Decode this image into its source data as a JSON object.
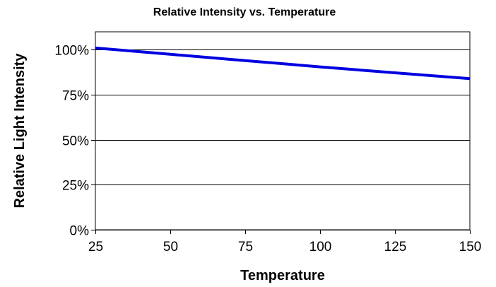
{
  "chart_data": {
    "type": "line",
    "title": "Relative Intensity vs. Temperature",
    "xlabel": "Temperature",
    "ylabel": "Relative Light Intensity",
    "xlim": [
      25,
      150
    ],
    "ylim": [
      0,
      1.1
    ],
    "x_ticks": [
      25,
      50,
      75,
      100,
      125,
      150
    ],
    "x_tick_labels": [
      "25",
      "50",
      "75",
      "100",
      "125",
      "150"
    ],
    "y_ticks": [
      0,
      0.25,
      0.5,
      0.75,
      1.0
    ],
    "y_tick_labels": [
      "0%",
      "25%",
      "50%",
      "75%",
      "100%"
    ],
    "grid": "horizontal",
    "legend": "none",
    "series": [
      {
        "color": "#0000e0",
        "x": [
          25,
          50,
          75,
          100,
          125,
          150
        ],
        "y": [
          1.01,
          0.975,
          0.94,
          0.905,
          0.872,
          0.84
        ]
      }
    ]
  }
}
